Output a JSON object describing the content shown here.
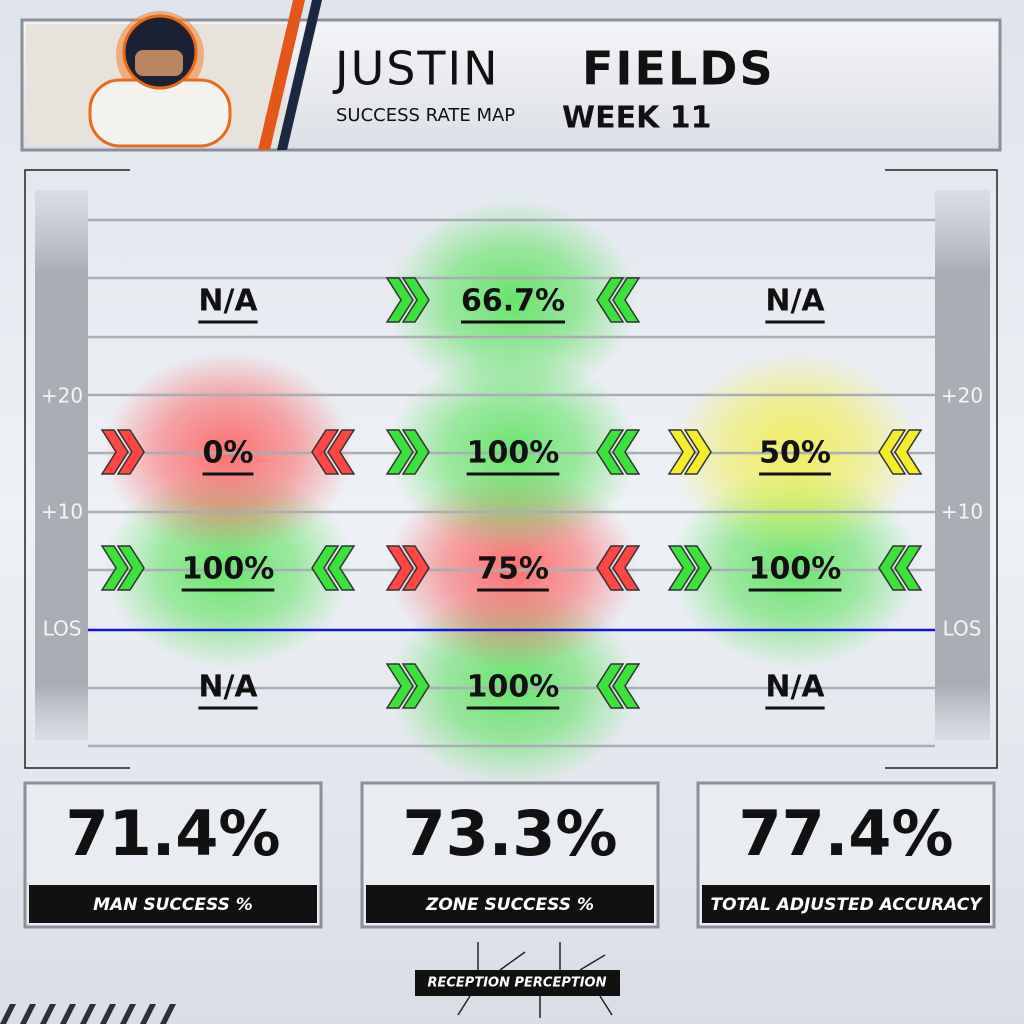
{
  "header": {
    "first_name": "JUSTIN",
    "last_name": "FIELDS",
    "subtitle": "SUCCESS RATE MAP",
    "week": "WEEK 11"
  },
  "field": {
    "side_labels": [
      "+20",
      "+10",
      "LOS"
    ],
    "rows": [
      [
        {
          "label": "N/A"
        },
        {
          "label": "66.7%",
          "color": "#3ee03e"
        },
        {
          "label": "N/A"
        }
      ],
      [
        {
          "label": "0%",
          "color": "#ff4646"
        },
        {
          "label": "100%",
          "color": "#3ee03e"
        },
        {
          "label": "50%",
          "color": "#f2ee2e"
        }
      ],
      [
        {
          "label": "100%",
          "color": "#3ee03e"
        },
        {
          "label": "75%",
          "color": "#ff4646"
        },
        {
          "label": "100%",
          "color": "#3ee03e"
        }
      ],
      [
        {
          "label": "N/A"
        },
        {
          "label": "100%",
          "color": "#3ee03e"
        },
        {
          "label": "N/A"
        }
      ]
    ]
  },
  "stats": [
    {
      "value": "71.4%",
      "label": "MAN SUCCESS %"
    },
    {
      "value": "73.3%",
      "label": "ZONE SUCCESS %"
    },
    {
      "value": "77.4%",
      "label": "TOTAL ADJUSTED ACCURACY"
    }
  ],
  "footer": {
    "brand": "RECEPTION PERCEPTION"
  }
}
